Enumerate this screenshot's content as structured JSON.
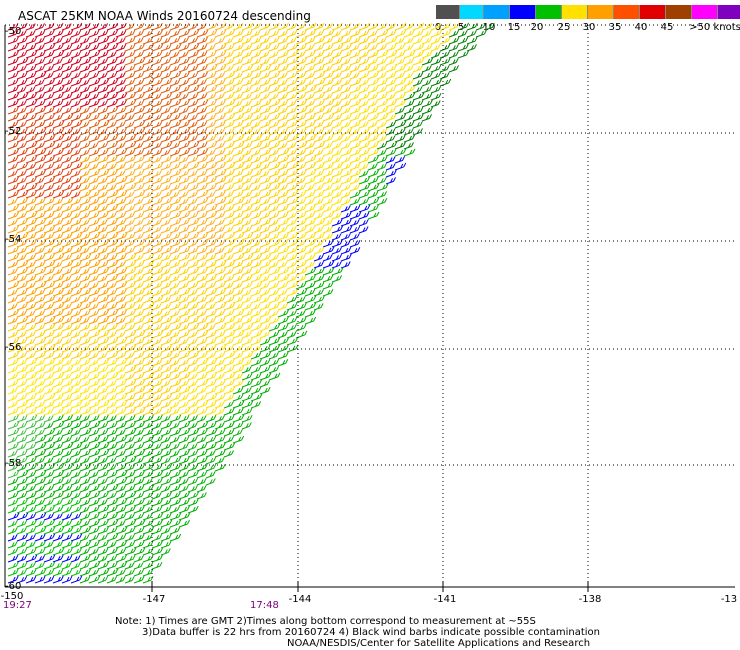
{
  "title": "ASCAT 25KM NOAA Winds 20160724 descending",
  "colorbar": {
    "labels": [
      "0",
      "5",
      "10",
      "15",
      "20",
      "25",
      "30",
      "35",
      "40",
      "45",
      ">50 knots"
    ],
    "colors": [
      "#505050",
      "#00d8ff",
      "#00a0ff",
      "#0000ff",
      "#00c000",
      "#ffe000",
      "#ffa000",
      "#ff5000",
      "#e00000",
      "#a04000",
      "#ff00ff",
      "#8000c0"
    ]
  },
  "axes": {
    "lon_labels": [
      "-150",
      "-147",
      "-144",
      "-141",
      "-138",
      "-13"
    ],
    "lat_labels": [
      "-50",
      "-52",
      "-54",
      "-56",
      "-58",
      "-60"
    ],
    "grid": true
  },
  "times": [
    "19:27",
    "17:48"
  ],
  "notes": [
    "Note: 1) Times are GMT 2)Times along bottom correspond to measurement at ~55S",
    "3)Data buffer is 22 hrs from 20160724 4) Black wind barbs indicate possible contamination",
    "NOAA/NESDIS/Center for Satellite Applications and Research"
  ]
}
